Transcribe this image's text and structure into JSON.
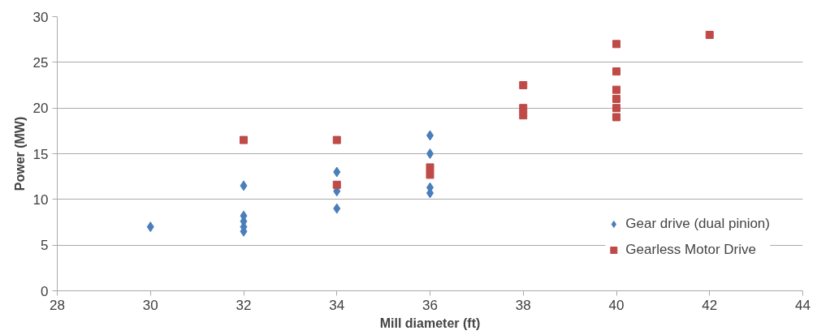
{
  "chart_data": {
    "type": "scatter",
    "xlabel": "Mill diameter (ft)",
    "ylabel": "Power (MW)",
    "xlim": [
      28,
      44
    ],
    "xticks": [
      28,
      30,
      32,
      34,
      36,
      38,
      40,
      42,
      44
    ],
    "ylim": [
      0,
      30
    ],
    "yticks": [
      0,
      5,
      10,
      15,
      20,
      25,
      30
    ],
    "grid": "y",
    "legend": "bottom right",
    "series": [
      {
        "name": "Gear drive (dual pinion)",
        "color": "#4a7ebb",
        "marker": "diamond",
        "x": [
          30,
          32,
          32,
          32,
          32,
          32,
          34,
          34,
          34,
          36,
          36,
          36,
          36
        ],
        "values": [
          7,
          11.5,
          8.2,
          7.6,
          7,
          6.5,
          13,
          10.9,
          9,
          17,
          15,
          11.3,
          10.7
        ]
      },
      {
        "name": "Gearless Motor Drive",
        "color": "#be4b48",
        "marker": "square",
        "x": [
          32,
          34,
          34,
          36,
          36,
          38,
          38,
          38,
          40,
          40,
          40,
          40,
          40,
          40,
          42
        ],
        "values": [
          16.5,
          16.5,
          11.6,
          13.5,
          12.7,
          22.5,
          20,
          19.2,
          27,
          24,
          22,
          21,
          20,
          19,
          28
        ]
      }
    ]
  }
}
